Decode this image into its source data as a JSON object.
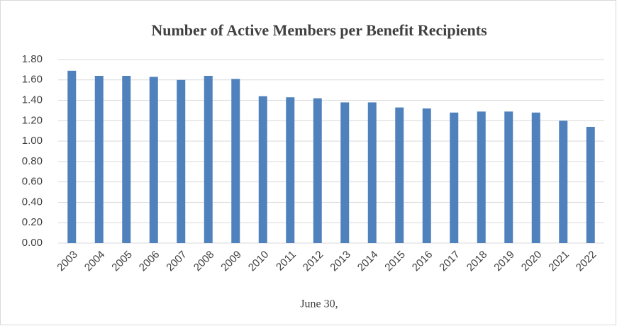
{
  "chart_data": {
    "type": "bar",
    "title": "Number of Active Members per Benefit Recipients",
    "x_label": "June 30,",
    "categories": [
      "2003",
      "2004",
      "2005",
      "2006",
      "2007",
      "2008",
      "2009",
      "2010",
      "2011",
      "2012",
      "2013",
      "2014",
      "2015",
      "2016",
      "2017",
      "2018",
      "2019",
      "2020",
      "2021",
      "2022"
    ],
    "values": [
      1.69,
      1.64,
      1.64,
      1.63,
      1.6,
      1.64,
      1.61,
      1.44,
      1.43,
      1.42,
      1.38,
      1.38,
      1.33,
      1.32,
      1.28,
      1.29,
      1.29,
      1.28,
      1.2,
      1.14
    ],
    "color": "#4f81bd",
    "ylim": [
      0,
      1.8
    ],
    "yticks": [
      {
        "value": 0,
        "label": "0.00"
      },
      {
        "value": 0.2,
        "label": "0.20"
      },
      {
        "value": 0.4,
        "label": "0.40"
      },
      {
        "value": 0.6,
        "label": "0.60"
      },
      {
        "value": 0.8,
        "label": "0.80"
      },
      {
        "value": 1,
        "label": "1.00"
      },
      {
        "value": 1.2,
        "label": "1.20"
      },
      {
        "value": 1.4,
        "label": "1.40"
      },
      {
        "value": 1.6,
        "label": "1.60"
      },
      {
        "value": 1.8,
        "label": "1.80"
      }
    ],
    "grid": true
  }
}
